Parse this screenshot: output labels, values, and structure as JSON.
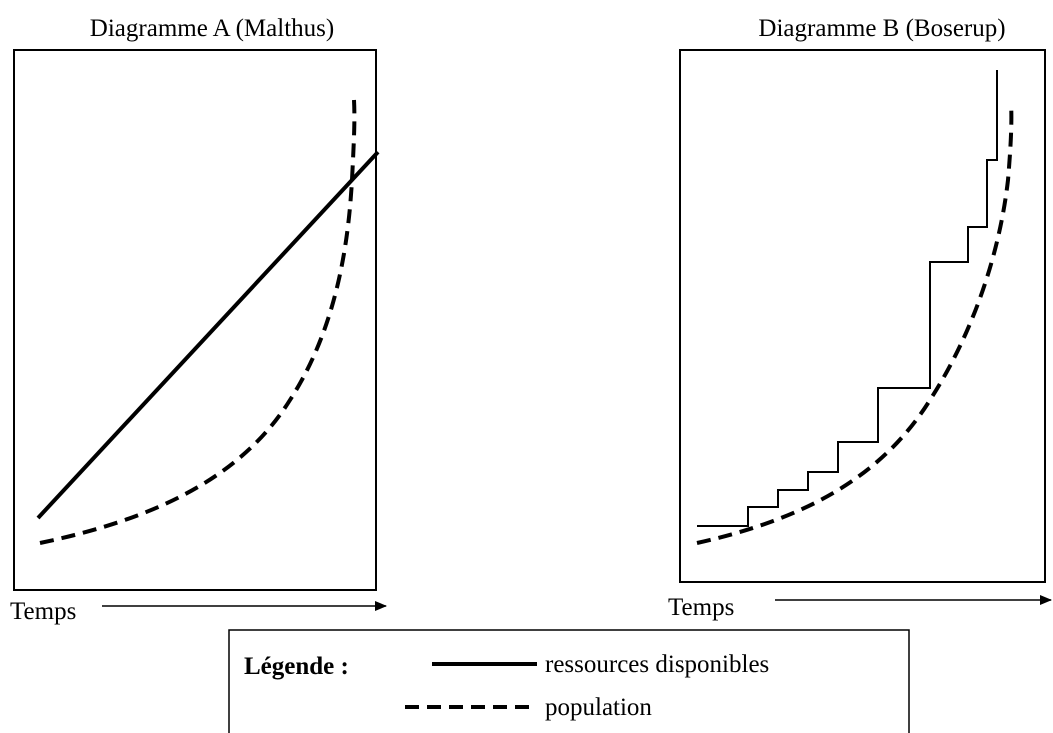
{
  "diagrams": [
    {
      "title": "Diagramme A (Malthus)",
      "x_label": "Temps"
    },
    {
      "title": "Diagramme B (Boserup)",
      "x_label": "Temps"
    }
  ],
  "legend": {
    "title": "Légende :",
    "entries": [
      "ressources disponibles",
      "population"
    ]
  }
}
